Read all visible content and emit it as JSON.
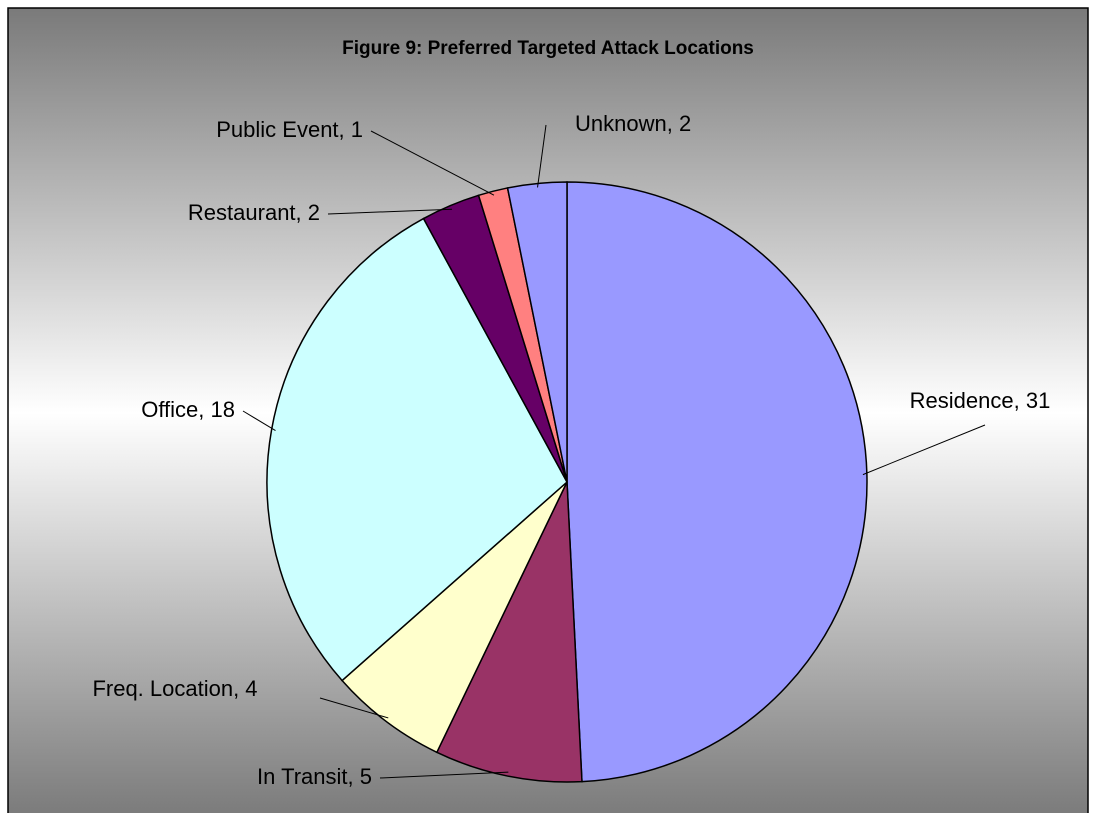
{
  "chart_data": {
    "type": "pie",
    "title": "Figure 9: Preferred Targeted Attack Locations",
    "categories": [
      "Residence",
      "In Transit",
      "Freq. Location",
      "Office",
      "Restaurant",
      "Public Event",
      "Unknown"
    ],
    "values": [
      31,
      5,
      4,
      18,
      2,
      1,
      2
    ],
    "value_labels": [
      "Residence, 31",
      "In Transit, 5",
      "Freq. Location, 4",
      "Office, 18",
      "Restaurant, 2",
      "Public Event, 1",
      "Unknown, 2"
    ],
    "colors": [
      "#9999ff",
      "#993366",
      "#ffffcc",
      "#ccffff",
      "#660066",
      "#ff8080",
      "#9999ff"
    ]
  }
}
